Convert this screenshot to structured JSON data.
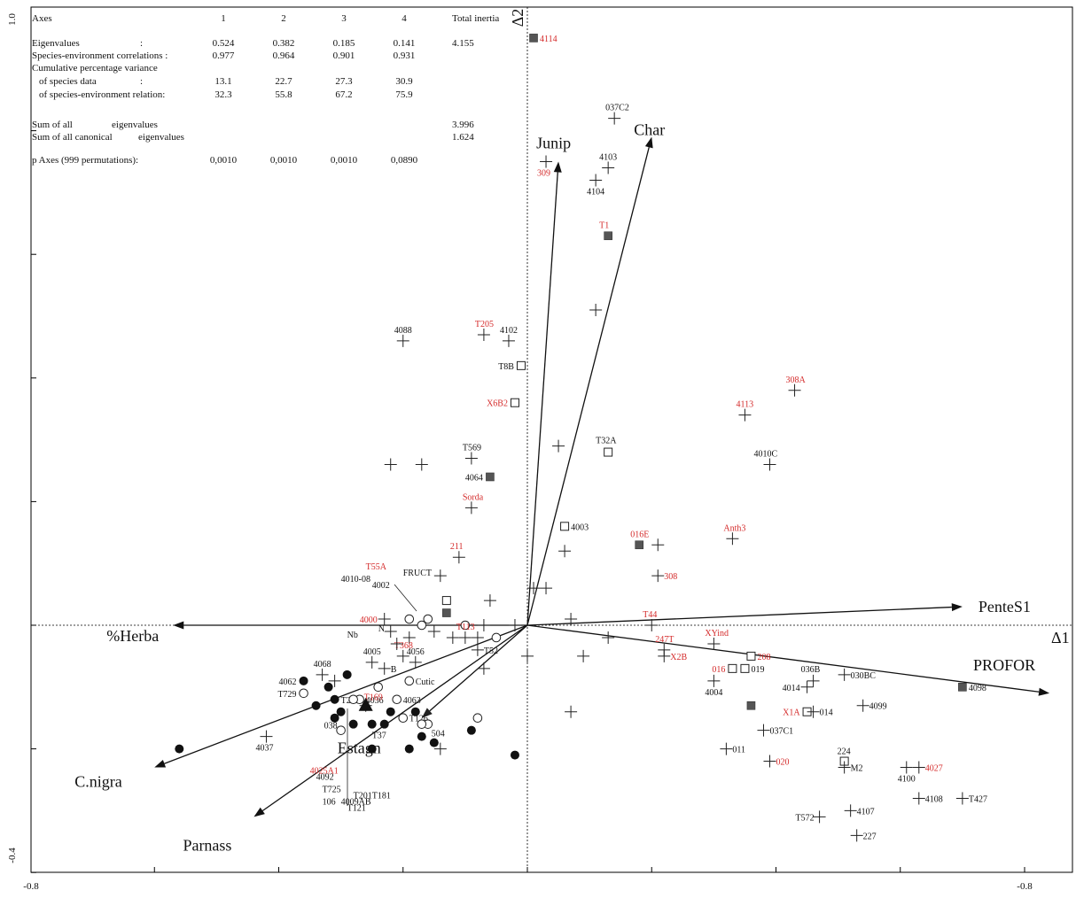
{
  "chart_data": {
    "type": "scatter",
    "title": "",
    "xlabel": "Δ1",
    "ylabel": "Δ2",
    "xlim": [
      -0.8,
      0.8
    ],
    "ylim": [
      -0.4,
      1.0
    ],
    "x_tick_labels": [
      "-0.8",
      "-0.8"
    ],
    "y_tick_labels": [
      "1.0",
      "-0.4"
    ],
    "grid": false,
    "legend": "none",
    "colors": {
      "axis": "#000000",
      "label_red": "#d42a2a",
      "label_black": "#111111",
      "square_fill": "#555555"
    },
    "stats_table": {
      "headers": [
        "Axes",
        "1",
        "2",
        "3",
        "4",
        "Total inertia"
      ],
      "rows": [
        [
          "Eigenvalues",
          ":",
          "0.524",
          "0.382",
          "0.185",
          "0.141",
          "4.155"
        ],
        [
          "Species-environment correlations :",
          "",
          "0.977",
          "0.964",
          "0.901",
          "0.931",
          ""
        ],
        [
          "Cumulative percentage variance",
          "",
          "",
          "",
          "",
          "",
          ""
        ],
        [
          "of species data",
          ":",
          "13.1",
          "22.7",
          "27.3",
          "30.9",
          ""
        ],
        [
          "of species-environment relation:",
          "",
          "32.3",
          "55.8",
          "67.2",
          "75.9",
          ""
        ],
        [
          "Sum of all",
          "eigenvalues",
          "",
          "",
          "",
          "",
          "3.996"
        ],
        [
          "Sum of all canonical",
          "eigenvalues",
          "",
          "",
          "",
          "",
          "1.624"
        ],
        [
          "p Axes (999 permutations):",
          "",
          "0,0010",
          "0,0010",
          "0,0010",
          "0,0890",
          ""
        ]
      ]
    },
    "vectors": [
      {
        "name": "Char",
        "x": 0.2,
        "y": 0.79
      },
      {
        "name": "Junip",
        "x": 0.05,
        "y": 0.75
      },
      {
        "name": "PenteS1",
        "x": 0.7,
        "y": 0.03
      },
      {
        "name": "PROFOR",
        "x": 0.84,
        "y": -0.11
      },
      {
        "name": "%Herba",
        "x": -0.57,
        "y": 0.0
      },
      {
        "name": "C.nigra",
        "x": -0.6,
        "y": -0.23
      },
      {
        "name": "Parnass",
        "x": -0.44,
        "y": -0.31
      },
      {
        "name": "Estagn",
        "x": -0.17,
        "y": -0.15
      }
    ],
    "points": [
      {
        "label": "4114",
        "x": 0.01,
        "y": 0.95,
        "marker": "square-filled",
        "red": true
      },
      {
        "label": "037C2",
        "x": 0.14,
        "y": 0.82,
        "marker": "plus",
        "red": false
      },
      {
        "label": "309",
        "x": 0.03,
        "y": 0.75,
        "marker": "plus",
        "red": true
      },
      {
        "label": "4103",
        "x": 0.13,
        "y": 0.74,
        "marker": "plus",
        "red": false
      },
      {
        "label": "4104",
        "x": 0.11,
        "y": 0.72,
        "marker": "plus",
        "red": false
      },
      {
        "label": "T1",
        "x": 0.13,
        "y": 0.63,
        "marker": "square-filled",
        "red": true
      },
      {
        "label": "",
        "x": 0.11,
        "y": 0.51,
        "marker": "plus",
        "red": false
      },
      {
        "label": "4088",
        "x": -0.2,
        "y": 0.46,
        "marker": "plus",
        "red": false
      },
      {
        "label": "T205",
        "x": -0.07,
        "y": 0.47,
        "marker": "plus",
        "red": true
      },
      {
        "label": "4102",
        "x": -0.03,
        "y": 0.46,
        "marker": "plus",
        "red": false
      },
      {
        "label": "T8B",
        "x": -0.01,
        "y": 0.42,
        "marker": "square",
        "red": false
      },
      {
        "label": "X6B2",
        "x": -0.02,
        "y": 0.36,
        "marker": "square",
        "red": true
      },
      {
        "label": "308A",
        "x": 0.43,
        "y": 0.38,
        "marker": "plus",
        "red": true
      },
      {
        "label": "4113",
        "x": 0.35,
        "y": 0.34,
        "marker": "plus",
        "red": true
      },
      {
        "label": "",
        "x": 0.05,
        "y": 0.29,
        "marker": "plus",
        "red": false
      },
      {
        "label": "T32A",
        "x": 0.13,
        "y": 0.28,
        "marker": "square",
        "red": false
      },
      {
        "label": "4010C",
        "x": 0.39,
        "y": 0.26,
        "marker": "plus",
        "red": false
      },
      {
        "label": "T569",
        "x": -0.09,
        "y": 0.27,
        "marker": "plus",
        "red": false
      },
      {
        "label": "",
        "x": -0.22,
        "y": 0.26,
        "marker": "plus",
        "red": false
      },
      {
        "label": "",
        "x": -0.17,
        "y": 0.26,
        "marker": "plus",
        "red": false
      },
      {
        "label": "4064",
        "x": -0.06,
        "y": 0.24,
        "marker": "square-filled",
        "red": false
      },
      {
        "label": "Sorda",
        "x": -0.09,
        "y": 0.19,
        "marker": "plus",
        "red": true
      },
      {
        "label": "4003",
        "x": 0.06,
        "y": 0.16,
        "marker": "square",
        "red": false
      },
      {
        "label": "016E",
        "x": 0.18,
        "y": 0.13,
        "marker": "square-filled",
        "red": true
      },
      {
        "label": "",
        "x": 0.21,
        "y": 0.13,
        "marker": "plus",
        "red": false
      },
      {
        "label": "Anth3",
        "x": 0.33,
        "y": 0.14,
        "marker": "plus",
        "red": true
      },
      {
        "label": "",
        "x": 0.06,
        "y": 0.12,
        "marker": "plus",
        "red": false
      },
      {
        "label": "211",
        "x": -0.11,
        "y": 0.11,
        "marker": "plus",
        "red": true
      },
      {
        "label": "308",
        "x": 0.21,
        "y": 0.08,
        "marker": "plus",
        "red": true
      },
      {
        "label": "",
        "x": -0.14,
        "y": 0.08,
        "marker": "plus",
        "red": false
      },
      {
        "label": "",
        "x": 0.01,
        "y": 0.06,
        "marker": "plus",
        "red": false
      },
      {
        "label": "",
        "x": 0.03,
        "y": 0.06,
        "marker": "plus",
        "red": false
      },
      {
        "label": "",
        "x": -0.06,
        "y": 0.04,
        "marker": "plus",
        "red": false
      },
      {
        "label": "",
        "x": -0.13,
        "y": 0.04,
        "marker": "square",
        "red": false
      },
      {
        "label": "4000",
        "x": -0.23,
        "y": 0.01,
        "marker": "plus",
        "red": true
      },
      {
        "label": "",
        "x": -0.19,
        "y": 0.01,
        "marker": "circle",
        "red": false
      },
      {
        "label": "",
        "x": -0.17,
        "y": 0.0,
        "marker": "circle",
        "red": false
      },
      {
        "label": "",
        "x": -0.16,
        "y": 0.01,
        "marker": "circle",
        "red": false
      },
      {
        "label": "",
        "x": -0.13,
        "y": 0.02,
        "marker": "square-filled",
        "red": false
      },
      {
        "label": "",
        "x": -0.1,
        "y": 0.0,
        "marker": "circle",
        "red": false
      },
      {
        "label": "",
        "x": -0.07,
        "y": 0.0,
        "marker": "plus",
        "red": false
      },
      {
        "label": "",
        "x": -0.02,
        "y": 0.0,
        "marker": "plus",
        "red": false
      },
      {
        "label": "",
        "x": 0.07,
        "y": 0.01,
        "marker": "plus",
        "red": false
      },
      {
        "label": "T44",
        "x": 0.2,
        "y": 0.0,
        "marker": "plus",
        "red": true
      },
      {
        "label": "T113",
        "x": -0.1,
        "y": -0.02,
        "marker": "plus",
        "red": true
      },
      {
        "label": "",
        "x": -0.15,
        "y": -0.01,
        "marker": "plus",
        "red": false
      },
      {
        "label": "",
        "x": -0.12,
        "y": -0.02,
        "marker": "plus",
        "red": false
      },
      {
        "label": "",
        "x": -0.05,
        "y": -0.02,
        "marker": "circle",
        "red": false
      },
      {
        "label": "",
        "x": -0.22,
        "y": -0.01,
        "marker": "plus",
        "red": false
      },
      {
        "label": "",
        "x": -0.19,
        "y": -0.02,
        "marker": "plus",
        "red": false
      },
      {
        "label": "",
        "x": 0.13,
        "y": -0.02,
        "marker": "plus",
        "red": false
      },
      {
        "label": "247T",
        "x": 0.22,
        "y": -0.04,
        "marker": "plus",
        "red": true
      },
      {
        "label": "XYind",
        "x": 0.3,
        "y": -0.03,
        "marker": "plus",
        "red": true
      },
      {
        "label": "208",
        "x": 0.36,
        "y": -0.05,
        "marker": "square",
        "red": true
      },
      {
        "label": "X2B",
        "x": 0.22,
        "y": -0.05,
        "marker": "plus",
        "red": true
      },
      {
        "label": "T52",
        "x": -0.08,
        "y": -0.04,
        "marker": "plus",
        "red": false
      },
      {
        "label": "",
        "x": 0.0,
        "y": -0.05,
        "marker": "plus",
        "red": false
      },
      {
        "label": "",
        "x": 0.09,
        "y": -0.05,
        "marker": "plus",
        "red": false
      },
      {
        "label": "",
        "x": -0.07,
        "y": -0.07,
        "marker": "plus",
        "red": false
      },
      {
        "label": "016",
        "x": 0.33,
        "y": -0.07,
        "marker": "square",
        "red": true
      },
      {
        "label": "019",
        "x": 0.35,
        "y": -0.07,
        "marker": "square",
        "red": false
      },
      {
        "label": "036B",
        "x": 0.46,
        "y": -0.09,
        "marker": "plus",
        "red": false
      },
      {
        "label": "030BC",
        "x": 0.51,
        "y": -0.08,
        "marker": "plus",
        "red": false
      },
      {
        "label": "4014",
        "x": 0.45,
        "y": -0.1,
        "marker": "plus",
        "red": false
      },
      {
        "label": "4004",
        "x": 0.3,
        "y": -0.09,
        "marker": "plus",
        "red": false
      },
      {
        "label": "4098",
        "x": 0.7,
        "y": -0.1,
        "marker": "square-filled",
        "red": false
      },
      {
        "label": "",
        "x": 0.36,
        "y": -0.13,
        "marker": "square-filled",
        "red": false
      },
      {
        "label": "X1A",
        "x": 0.45,
        "y": -0.14,
        "marker": "square",
        "red": true
      },
      {
        "label": "014",
        "x": 0.46,
        "y": -0.14,
        "marker": "plus",
        "red": false
      },
      {
        "label": "4099",
        "x": 0.54,
        "y": -0.13,
        "marker": "plus",
        "red": false
      },
      {
        "label": "",
        "x": 0.07,
        "y": -0.14,
        "marker": "plus",
        "red": false
      },
      {
        "label": "037C1",
        "x": 0.38,
        "y": -0.17,
        "marker": "plus",
        "red": false
      },
      {
        "label": "011",
        "x": 0.32,
        "y": -0.2,
        "marker": "plus",
        "red": false
      },
      {
        "label": "020",
        "x": 0.39,
        "y": -0.22,
        "marker": "plus",
        "red": true
      },
      {
        "label": "224",
        "x": 0.51,
        "y": -0.22,
        "marker": "square",
        "red": false
      },
      {
        "label": "M2",
        "x": 0.51,
        "y": -0.23,
        "marker": "plus",
        "red": false
      },
      {
        "label": "4100",
        "x": 0.61,
        "y": -0.23,
        "marker": "plus",
        "red": false
      },
      {
        "label": "4027",
        "x": 0.63,
        "y": -0.23,
        "marker": "plus",
        "red": true
      },
      {
        "label": "4108",
        "x": 0.63,
        "y": -0.28,
        "marker": "plus",
        "red": false
      },
      {
        "label": "T427",
        "x": 0.7,
        "y": -0.28,
        "marker": "plus",
        "red": false
      },
      {
        "label": "T572",
        "x": 0.47,
        "y": -0.31,
        "marker": "plus",
        "red": false
      },
      {
        "label": "4107",
        "x": 0.52,
        "y": -0.3,
        "marker": "plus",
        "red": false
      },
      {
        "label": "227",
        "x": 0.53,
        "y": -0.34,
        "marker": "plus",
        "red": false
      },
      {
        "label": "4068",
        "x": -0.33,
        "y": -0.08,
        "marker": "plus",
        "red": false
      },
      {
        "label": "4005",
        "x": -0.25,
        "y": -0.06,
        "marker": "plus",
        "red": false
      },
      {
        "label": "T368",
        "x": -0.2,
        "y": -0.05,
        "marker": "plus",
        "red": true
      },
      {
        "label": "4056",
        "x": -0.18,
        "y": -0.06,
        "marker": "plus",
        "red": false
      },
      {
        "label": "B",
        "x": -0.23,
        "y": -0.07,
        "marker": "plus",
        "red": false
      },
      {
        "label": "Cutic",
        "x": -0.19,
        "y": -0.09,
        "marker": "circle",
        "red": false
      },
      {
        "label": "4062",
        "x": -0.36,
        "y": -0.09,
        "marker": "filled-circle",
        "red": false
      },
      {
        "label": "T729",
        "x": -0.36,
        "y": -0.11,
        "marker": "circle",
        "red": false
      },
      {
        "label": "T28",
        "x": -0.31,
        "y": -0.12,
        "marker": "filled-circle",
        "red": false
      },
      {
        "label": "4036",
        "x": -0.27,
        "y": -0.12,
        "marker": "circle",
        "red": false
      },
      {
        "label": "4063",
        "x": -0.21,
        "y": -0.12,
        "marker": "circle",
        "red": false
      },
      {
        "label": "T169",
        "x": -0.26,
        "y": -0.13,
        "marker": "plus",
        "red": true
      },
      {
        "label": "038",
        "x": -0.31,
        "y": -0.15,
        "marker": "filled-circle",
        "red": false
      },
      {
        "label": "T126",
        "x": -0.2,
        "y": -0.15,
        "marker": "circle",
        "red": false
      },
      {
        "label": "T37",
        "x": -0.23,
        "y": -0.16,
        "marker": "filled-circle",
        "red": false
      },
      {
        "label": "504",
        "x": -0.16,
        "y": -0.16,
        "marker": "circle",
        "red": false
      },
      {
        "label": "4037",
        "x": -0.42,
        "y": -0.18,
        "marker": "plus",
        "red": false
      },
      {
        "label": "",
        "x": -0.56,
        "y": -0.2,
        "marker": "filled-circle",
        "red": false
      },
      {
        "label": "",
        "x": -0.34,
        "y": -0.13,
        "marker": "filled-circle",
        "red": false
      },
      {
        "label": "",
        "x": -0.32,
        "y": -0.1,
        "marker": "filled-circle",
        "red": false
      },
      {
        "label": "",
        "x": -0.29,
        "y": -0.08,
        "marker": "filled-circle",
        "red": false
      },
      {
        "label": "",
        "x": -0.3,
        "y": -0.14,
        "marker": "filled-circle",
        "red": false
      },
      {
        "label": "",
        "x": -0.28,
        "y": -0.16,
        "marker": "filled-circle",
        "red": false
      },
      {
        "label": "",
        "x": -0.25,
        "y": -0.16,
        "marker": "filled-circle",
        "red": false
      },
      {
        "label": "",
        "x": -0.22,
        "y": -0.14,
        "marker": "filled-circle",
        "red": false
      },
      {
        "label": "",
        "x": -0.18,
        "y": -0.14,
        "marker": "filled-circle",
        "red": false
      },
      {
        "label": "",
        "x": -0.17,
        "y": -0.18,
        "marker": "filled-circle",
        "red": false
      },
      {
        "label": "",
        "x": -0.15,
        "y": -0.19,
        "marker": "filled-circle",
        "red": false
      },
      {
        "label": "",
        "x": -0.19,
        "y": -0.2,
        "marker": "filled-circle",
        "red": false
      },
      {
        "label": "",
        "x": -0.25,
        "y": -0.2,
        "marker": "filled-circle",
        "red": false
      },
      {
        "label": "",
        "x": -0.09,
        "y": -0.17,
        "marker": "filled-circle",
        "red": false
      },
      {
        "label": "",
        "x": -0.02,
        "y": -0.21,
        "marker": "filled-circle",
        "red": false
      },
      {
        "label": "",
        "x": -0.14,
        "y": -0.2,
        "marker": "plus",
        "red": false
      },
      {
        "label": "",
        "x": -0.3,
        "y": -0.17,
        "marker": "circle",
        "red": false
      },
      {
        "label": "",
        "x": -0.28,
        "y": -0.12,
        "marker": "circle",
        "red": false
      },
      {
        "label": "",
        "x": -0.24,
        "y": -0.1,
        "marker": "circle",
        "red": false
      },
      {
        "label": "",
        "x": -0.17,
        "y": -0.16,
        "marker": "circle",
        "red": false
      },
      {
        "label": "",
        "x": -0.08,
        "y": -0.15,
        "marker": "circle",
        "red": false
      },
      {
        "label": "",
        "x": -0.31,
        "y": -0.09,
        "marker": "plus",
        "red": false
      },
      {
        "label": "",
        "x": -0.21,
        "y": -0.03,
        "marker": "plus",
        "red": false
      },
      {
        "label": "",
        "x": -0.08,
        "y": -0.02,
        "marker": "plus",
        "red": false
      },
      {
        "label": "",
        "x": -0.26,
        "y": -0.13,
        "marker": "triangle",
        "red": false
      }
    ],
    "annotations": [
      {
        "text": "FRUCT",
        "x": -0.2,
        "y": 0.08
      },
      {
        "text": "4010-08",
        "x": -0.3,
        "y": 0.07
      },
      {
        "text": "4002",
        "x": -0.25,
        "y": 0.06
      },
      {
        "text": "T55A",
        "x": -0.26,
        "y": 0.09,
        "red": true
      },
      {
        "text": "Nb",
        "x": -0.29,
        "y": -0.02
      },
      {
        "text": "N",
        "x": -0.24,
        "y": -0.01
      },
      {
        "text": "4025A1",
        "x": -0.35,
        "y": -0.24,
        "red": true
      },
      {
        "text": "4092",
        "x": -0.34,
        "y": -0.25
      },
      {
        "text": "T725",
        "x": -0.33,
        "y": -0.27
      },
      {
        "text": "T201T181",
        "x": -0.28,
        "y": -0.28
      },
      {
        "text": "4009AB",
        "x": -0.3,
        "y": -0.29
      },
      {
        "text": "106",
        "x": -0.33,
        "y": -0.29
      },
      {
        "text": "T121",
        "x": -0.29,
        "y": -0.3
      }
    ]
  }
}
